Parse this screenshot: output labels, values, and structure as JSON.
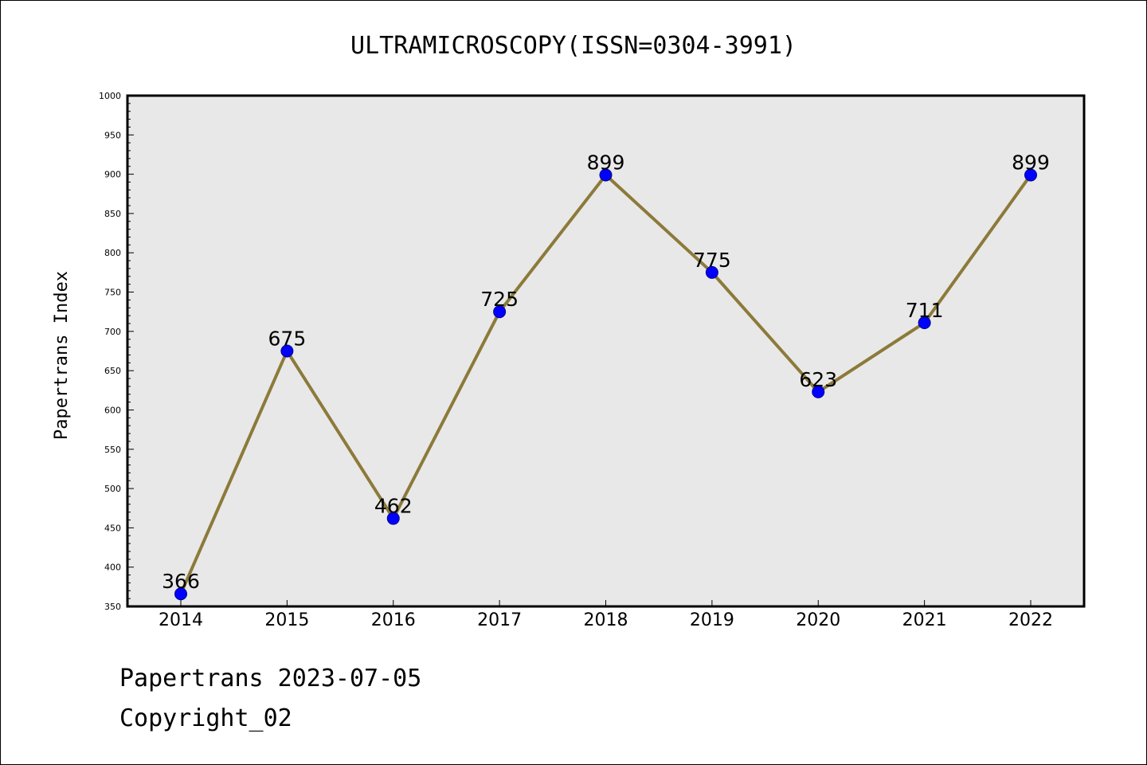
{
  "colors": {
    "plot_background": "#e8e8e8",
    "line": "#8c7a3a",
    "marker": "#0000ff",
    "marker_edge": "#00008b"
  },
  "chart_data": {
    "type": "line",
    "title": "ULTRAMICROSCOPY(ISSN=0304-3991)",
    "xlabel": "",
    "ylabel": "Papertrans Index",
    "categories": [
      "2014",
      "2015",
      "2016",
      "2017",
      "2018",
      "2019",
      "2020",
      "2021",
      "2022"
    ],
    "values": [
      366,
      675,
      462,
      725,
      899,
      775,
      623,
      711,
      899
    ],
    "data_labels": [
      "366",
      "675",
      "462",
      "725",
      "899",
      "775",
      "623",
      "711",
      "899"
    ],
    "ylim": [
      350,
      1000
    ],
    "y_major_ticks": [
      "350",
      "400",
      "450",
      "500",
      "550",
      "600",
      "650",
      "700",
      "750",
      "800",
      "850",
      "900",
      "950",
      "1000"
    ],
    "y_minor_step": 10,
    "grid": false,
    "legend": "none"
  },
  "footer": {
    "date_line": "Papertrans 2023-07-05",
    "copyright_line": "Copyright_02"
  }
}
